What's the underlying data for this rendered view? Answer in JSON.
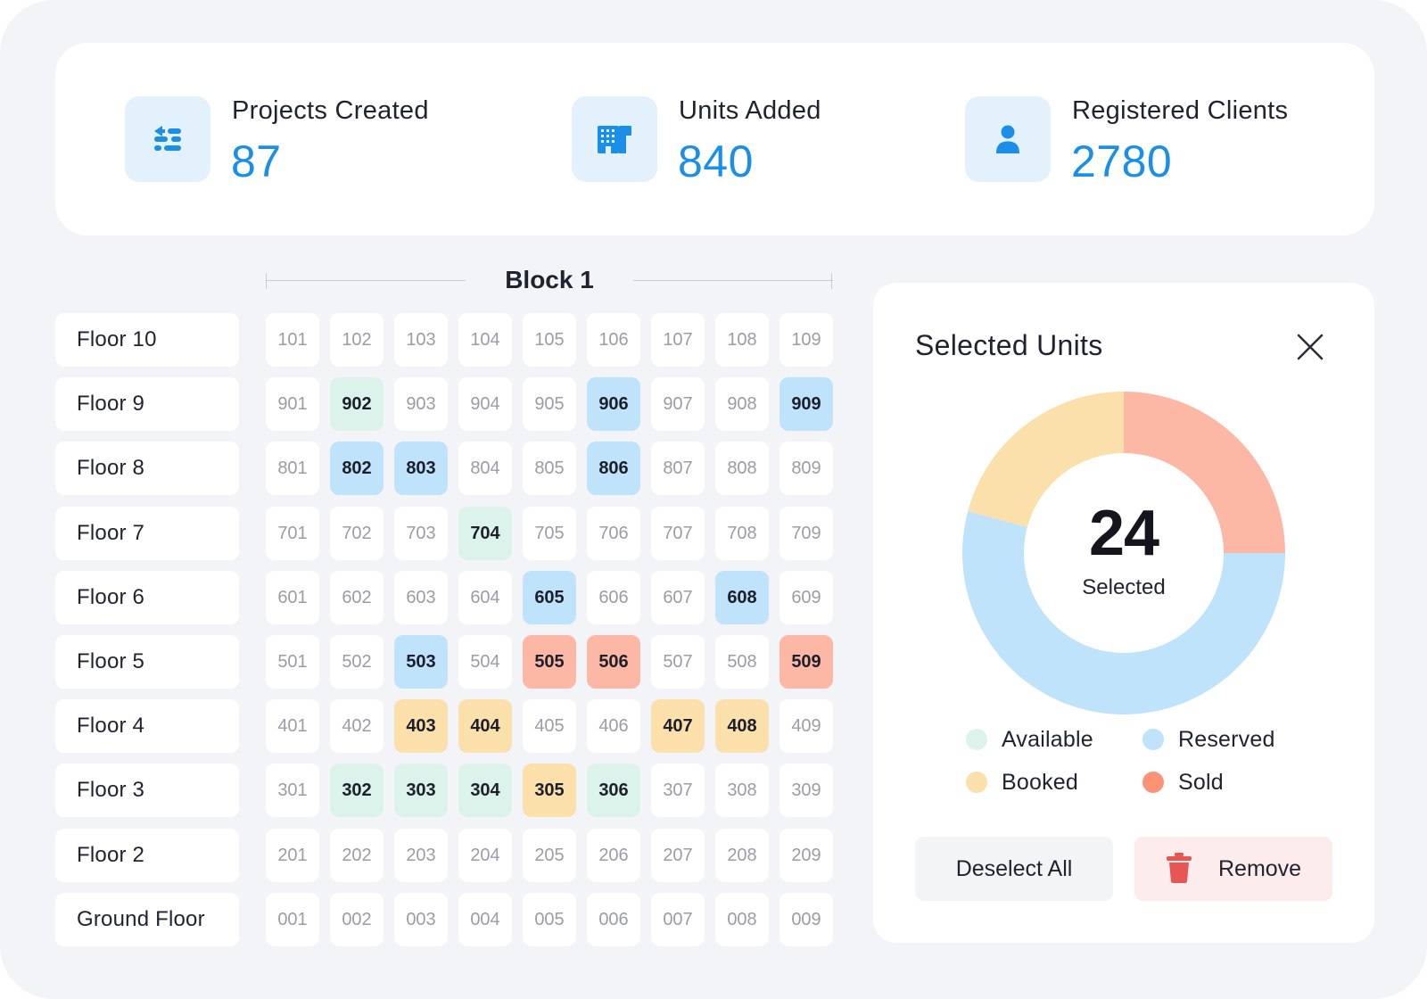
{
  "stats": [
    {
      "label": "Projects Created",
      "value": "87",
      "icon": "sliders-icon"
    },
    {
      "label": "Units Added",
      "value": "840",
      "icon": "building-icon"
    },
    {
      "label": "Registered Clients",
      "value": "2780",
      "icon": "user-icon"
    }
  ],
  "block": {
    "title": "Block 1"
  },
  "floors": [
    {
      "label": "Floor 10",
      "units": [
        {
          "n": "101",
          "s": "none"
        },
        {
          "n": "102",
          "s": "none"
        },
        {
          "n": "103",
          "s": "none"
        },
        {
          "n": "104",
          "s": "none"
        },
        {
          "n": "105",
          "s": "none"
        },
        {
          "n": "106",
          "s": "none"
        },
        {
          "n": "107",
          "s": "none"
        },
        {
          "n": "108",
          "s": "none"
        },
        {
          "n": "109",
          "s": "none"
        }
      ]
    },
    {
      "label": "Floor 9",
      "units": [
        {
          "n": "901",
          "s": "none"
        },
        {
          "n": "902",
          "s": "available"
        },
        {
          "n": "903",
          "s": "none"
        },
        {
          "n": "904",
          "s": "none"
        },
        {
          "n": "905",
          "s": "none"
        },
        {
          "n": "906",
          "s": "reserved"
        },
        {
          "n": "907",
          "s": "none"
        },
        {
          "n": "908",
          "s": "none"
        },
        {
          "n": "909",
          "s": "reserved"
        }
      ]
    },
    {
      "label": "Floor 8",
      "units": [
        {
          "n": "801",
          "s": "none"
        },
        {
          "n": "802",
          "s": "reserved"
        },
        {
          "n": "803",
          "s": "reserved"
        },
        {
          "n": "804",
          "s": "none"
        },
        {
          "n": "805",
          "s": "none"
        },
        {
          "n": "806",
          "s": "reserved"
        },
        {
          "n": "807",
          "s": "none"
        },
        {
          "n": "808",
          "s": "none"
        },
        {
          "n": "809",
          "s": "none"
        }
      ]
    },
    {
      "label": "Floor 7",
      "units": [
        {
          "n": "701",
          "s": "none"
        },
        {
          "n": "702",
          "s": "none"
        },
        {
          "n": "703",
          "s": "none"
        },
        {
          "n": "704",
          "s": "available"
        },
        {
          "n": "705",
          "s": "none"
        },
        {
          "n": "706",
          "s": "none"
        },
        {
          "n": "707",
          "s": "none"
        },
        {
          "n": "708",
          "s": "none"
        },
        {
          "n": "709",
          "s": "none"
        }
      ]
    },
    {
      "label": "Floor 6",
      "units": [
        {
          "n": "601",
          "s": "none"
        },
        {
          "n": "602",
          "s": "none"
        },
        {
          "n": "603",
          "s": "none"
        },
        {
          "n": "604",
          "s": "none"
        },
        {
          "n": "605",
          "s": "reserved"
        },
        {
          "n": "606",
          "s": "none"
        },
        {
          "n": "607",
          "s": "none"
        },
        {
          "n": "608",
          "s": "reserved"
        },
        {
          "n": "609",
          "s": "none"
        }
      ]
    },
    {
      "label": "Floor 5",
      "units": [
        {
          "n": "501",
          "s": "none"
        },
        {
          "n": "502",
          "s": "none"
        },
        {
          "n": "503",
          "s": "reserved"
        },
        {
          "n": "504",
          "s": "none"
        },
        {
          "n": "505",
          "s": "sold"
        },
        {
          "n": "506",
          "s": "sold"
        },
        {
          "n": "507",
          "s": "none"
        },
        {
          "n": "508",
          "s": "none"
        },
        {
          "n": "509",
          "s": "sold"
        }
      ]
    },
    {
      "label": "Floor 4",
      "units": [
        {
          "n": "401",
          "s": "none"
        },
        {
          "n": "402",
          "s": "none"
        },
        {
          "n": "403",
          "s": "booked"
        },
        {
          "n": "404",
          "s": "booked"
        },
        {
          "n": "405",
          "s": "none"
        },
        {
          "n": "406",
          "s": "none"
        },
        {
          "n": "407",
          "s": "booked"
        },
        {
          "n": "408",
          "s": "booked"
        },
        {
          "n": "409",
          "s": "none"
        }
      ]
    },
    {
      "label": "Floor 3",
      "units": [
        {
          "n": "301",
          "s": "none"
        },
        {
          "n": "302",
          "s": "available"
        },
        {
          "n": "303",
          "s": "available"
        },
        {
          "n": "304",
          "s": "available"
        },
        {
          "n": "305",
          "s": "booked"
        },
        {
          "n": "306",
          "s": "available"
        },
        {
          "n": "307",
          "s": "none"
        },
        {
          "n": "308",
          "s": "none"
        },
        {
          "n": "309",
          "s": "none"
        }
      ]
    },
    {
      "label": "Floor 2",
      "units": [
        {
          "n": "201",
          "s": "none"
        },
        {
          "n": "202",
          "s": "none"
        },
        {
          "n": "203",
          "s": "none"
        },
        {
          "n": "204",
          "s": "none"
        },
        {
          "n": "205",
          "s": "none"
        },
        {
          "n": "206",
          "s": "none"
        },
        {
          "n": "207",
          "s": "none"
        },
        {
          "n": "208",
          "s": "none"
        },
        {
          "n": "209",
          "s": "none"
        }
      ]
    },
    {
      "label": "Ground Floor",
      "units": [
        {
          "n": "001",
          "s": "none"
        },
        {
          "n": "002",
          "s": "none"
        },
        {
          "n": "003",
          "s": "none"
        },
        {
          "n": "004",
          "s": "none"
        },
        {
          "n": "005",
          "s": "none"
        },
        {
          "n": "006",
          "s": "none"
        },
        {
          "n": "007",
          "s": "none"
        },
        {
          "n": "008",
          "s": "none"
        },
        {
          "n": "009",
          "s": "none"
        }
      ]
    }
  ],
  "panel": {
    "title": "Selected Units",
    "count": "24",
    "caption": "Selected",
    "deselect_label": "Deselect All",
    "remove_label": "Remove"
  },
  "chart_data": {
    "type": "pie",
    "categories": [
      "Sold",
      "Reserved",
      "Booked"
    ],
    "values": [
      6,
      13,
      5
    ],
    "colors": [
      "#fcb8a5",
      "#bfe3fb",
      "#fbe0ab"
    ]
  },
  "legend": [
    {
      "label": "Available",
      "color": "#dcf3ec"
    },
    {
      "label": "Reserved",
      "color": "#bfe3fb"
    },
    {
      "label": "Booked",
      "color": "#fbe0ab"
    },
    {
      "label": "Sold",
      "color": "#fc9377"
    }
  ],
  "colors": {
    "accent": "#1b8ee8",
    "icon_bg": "#e3f1fd",
    "remove_icon": "#e85555"
  }
}
